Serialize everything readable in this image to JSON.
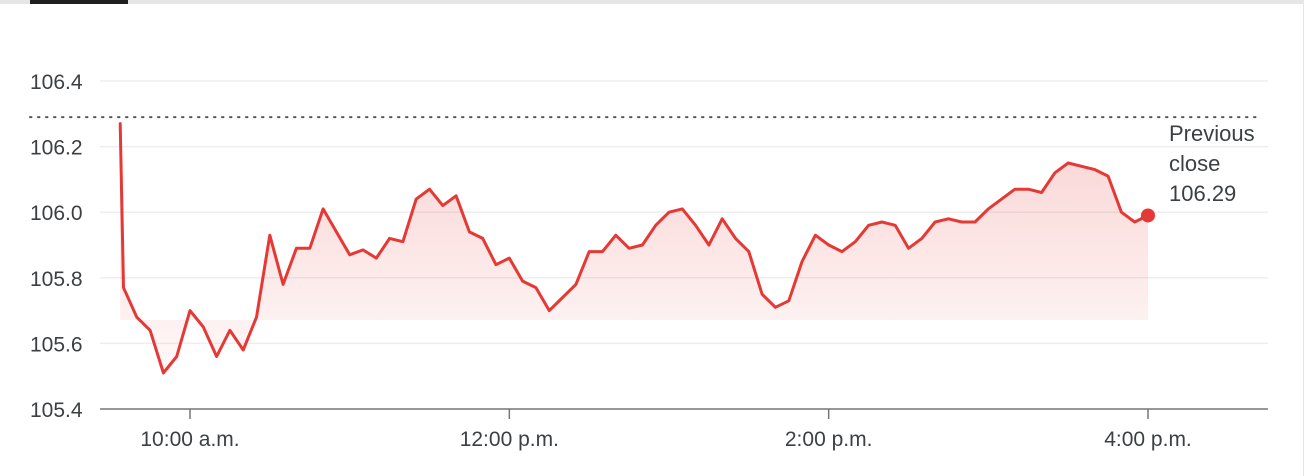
{
  "chart_data": {
    "type": "line",
    "title": "",
    "xlabel": "",
    "ylabel": "",
    "ylim": [
      105.4,
      106.4
    ],
    "yticks": [
      "106.4",
      "106.2",
      "106.0",
      "105.8",
      "105.6",
      "105.4"
    ],
    "xticks": [
      {
        "label": "10:00 a.m.",
        "hour": 10
      },
      {
        "label": "12:00 p.m.",
        "hour": 12
      },
      {
        "label": "2:00 p.m.",
        "hour": 14
      },
      {
        "label": "4:00 p.m.",
        "hour": 16
      }
    ],
    "grid": true,
    "colors": {
      "line": "#e53935",
      "fill": "#e53935",
      "grid": "#eeeeee",
      "axis": "#777777",
      "reference": "#555555"
    },
    "previous_close": {
      "value": 106.29,
      "label_line1": "Previous",
      "label_line2": "close",
      "label_value": "106.29"
    },
    "series": [
      {
        "times": [
          "09:30",
          "09:35",
          "09:40",
          "09:45",
          "09:50",
          "09:55",
          "10:00",
          "10:05",
          "10:10",
          "10:15",
          "10:20",
          "10:25",
          "10:30",
          "10:35",
          "10:40",
          "10:45",
          "10:50",
          "10:55",
          "11:00",
          "11:05",
          "11:10",
          "11:15",
          "11:20",
          "11:25",
          "11:30",
          "11:35",
          "11:40",
          "11:45",
          "11:50",
          "11:55",
          "12:00",
          "12:05",
          "12:10",
          "12:15",
          "12:20",
          "12:25",
          "12:30",
          "12:35",
          "12:40",
          "12:45",
          "12:50",
          "12:55",
          "13:00",
          "13:05",
          "13:10",
          "13:15",
          "13:20",
          "13:25",
          "13:30",
          "13:35",
          "13:40",
          "13:45",
          "13:50",
          "13:55",
          "14:00",
          "14:05",
          "14:10",
          "14:15",
          "14:20",
          "14:25",
          "14:30",
          "14:35",
          "14:40",
          "14:45",
          "14:50",
          "14:55",
          "15:00",
          "15:05",
          "15:10",
          "15:15",
          "15:20",
          "15:25",
          "15:30",
          "15:35",
          "15:40",
          "15:45",
          "15:50",
          "15:55",
          "16:00"
        ],
        "values": [
          106.27,
          105.77,
          105.68,
          105.64,
          105.51,
          105.56,
          105.7,
          105.65,
          105.56,
          105.64,
          105.58,
          105.68,
          105.93,
          105.78,
          105.89,
          105.89,
          106.01,
          105.94,
          105.87,
          105.885,
          105.86,
          105.92,
          105.91,
          106.04,
          106.07,
          106.02,
          106.05,
          105.94,
          105.92,
          105.84,
          105.86,
          105.79,
          105.77,
          105.7,
          105.74,
          105.78,
          105.88,
          105.88,
          105.93,
          105.89,
          105.9,
          105.96,
          106.0,
          106.01,
          105.96,
          105.9,
          105.98,
          105.92,
          105.88,
          105.75,
          105.71,
          105.73,
          105.85,
          105.93,
          105.9,
          105.88,
          105.91,
          105.96,
          105.97,
          105.96,
          105.89,
          105.92,
          105.97,
          105.98,
          105.97,
          105.97,
          106.01,
          106.04,
          106.07,
          106.07,
          106.06,
          106.12,
          106.15,
          106.14,
          106.13,
          106.11,
          106.0,
          105.97,
          105.99
        ]
      }
    ]
  }
}
